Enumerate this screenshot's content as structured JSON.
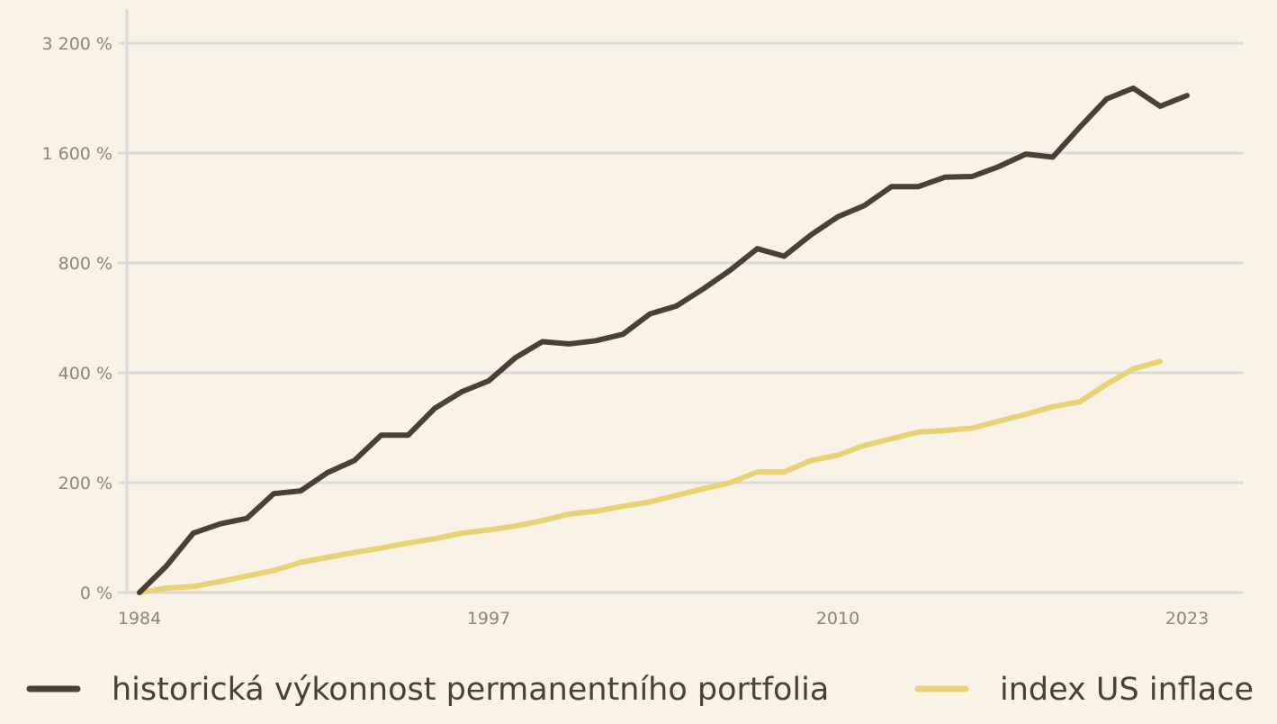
{
  "chart_data": {
    "type": "line",
    "title": "",
    "xlabel": "",
    "ylabel": "",
    "grid": true,
    "legend_position": "bottom",
    "x_ticks": [
      "1984",
      "1997",
      "2010",
      "2023"
    ],
    "y_ticks": [
      {
        "value": 0,
        "label": "0 %"
      },
      {
        "value": 200,
        "label": "200 %"
      },
      {
        "value": 400,
        "label": "400 %"
      },
      {
        "value": 800,
        "label": "800 %"
      },
      {
        "value": 1600,
        "label": "1 600 %"
      },
      {
        "value": 3200,
        "label": "3 200 %"
      }
    ],
    "x": [
      1984,
      1985,
      1986,
      1987,
      1988,
      1989,
      1990,
      1991,
      1992,
      1993,
      1994,
      1995,
      1996,
      1997,
      1998,
      1999,
      2000,
      2001,
      2002,
      2003,
      2004,
      2005,
      2006,
      2007,
      2008,
      2009,
      2010,
      2011,
      2012,
      2013,
      2014,
      2015,
      2016,
      2017,
      2018,
      2019,
      2020,
      2021,
      2022,
      2023
    ],
    "series": [
      {
        "name": "historická výkonnost permanentního portfolia",
        "color": "#4a4036",
        "values": [
          0,
          48,
          108,
          125,
          135,
          180,
          185,
          213,
          230,
          270,
          270,
          320,
          355,
          380,
          440,
          487,
          480,
          490,
          510,
          580,
          610,
          680,
          765,
          875,
          835,
          955,
          1070,
          1150,
          1295,
          1295,
          1375,
          1380,
          1470,
          1590,
          1560,
          1880,
          2250,
          2410,
          2150,
          2300
        ]
      },
      {
        "name": "index US inflace",
        "color": "#e8d274",
        "values": [
          0,
          8,
          11,
          20,
          30,
          40,
          55,
          64,
          73,
          81,
          90,
          98,
          108,
          114,
          121,
          131,
          143,
          148,
          157,
          165,
          177,
          189,
          200,
          214,
          214,
          230,
          238,
          253,
          264,
          275,
          278,
          282,
          295,
          308,
          323,
          333,
          372,
          410,
          430,
          null
        ]
      }
    ]
  }
}
